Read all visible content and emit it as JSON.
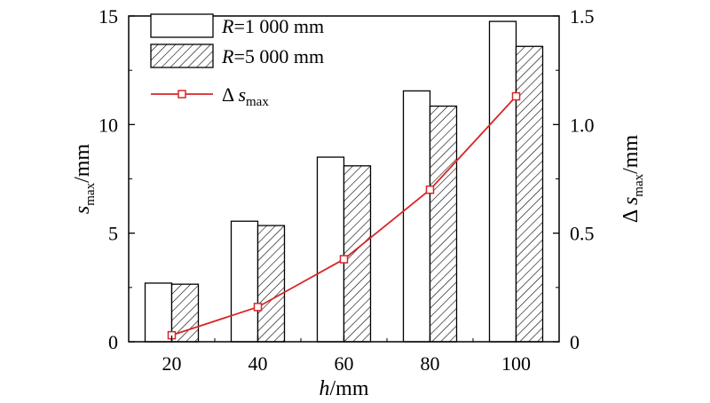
{
  "chart_data": {
    "type": "bar",
    "categories": [
      "20",
      "40",
      "60",
      "80",
      "100"
    ],
    "series": [
      {
        "name": "R=1 000 mm",
        "name_parts": {
          "var": "R",
          "rest": "=1 000 mm"
        },
        "axis": "left",
        "kind": "bar",
        "fill": "#ffffff",
        "values": [
          2.7,
          5.55,
          8.5,
          11.55,
          14.75
        ]
      },
      {
        "name": "R=5 000 mm",
        "name_parts": {
          "var": "R",
          "rest": "=5 000 mm"
        },
        "axis": "left",
        "kind": "bar",
        "fill": "hatch",
        "values": [
          2.65,
          5.35,
          8.1,
          10.85,
          13.6
        ]
      },
      {
        "name": "Δsmax",
        "name_parts": {
          "var": "Δ s",
          "sub": "max"
        },
        "axis": "right",
        "kind": "line",
        "color": "#d62728",
        "marker": "open-square",
        "values": [
          0.03,
          0.16,
          0.38,
          0.7,
          1.13
        ]
      }
    ],
    "xlabel": {
      "var": "h",
      "rest": "/mm"
    },
    "ylabel_left": {
      "var": "s",
      "sub": "max",
      "rest": "/mm"
    },
    "ylabel_right": {
      "var": "Δ s",
      "sub": "max",
      "rest": "/mm"
    },
    "ylim_left": [
      0,
      15
    ],
    "ylim_right": [
      0,
      1.5
    ],
    "yticks_left": [
      "0",
      "5",
      "10",
      "15"
    ],
    "yticks_right": [
      "0",
      "0.5",
      "1.0",
      "1.5"
    ],
    "grid": false,
    "legend_position": "top-left"
  }
}
